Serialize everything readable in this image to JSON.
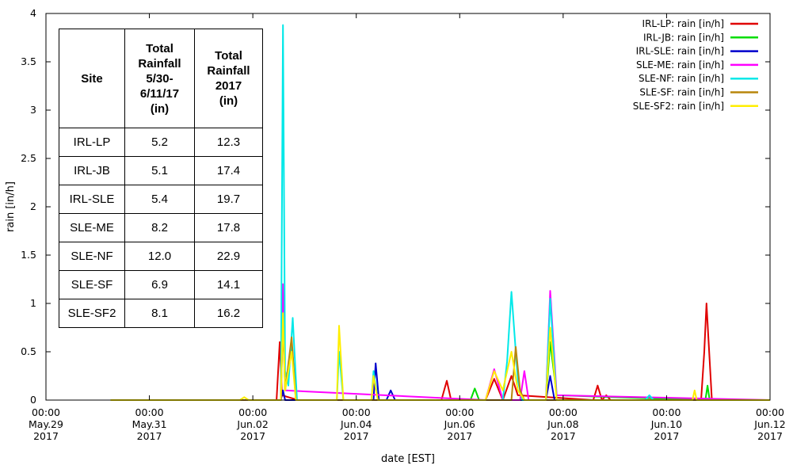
{
  "chart_data": {
    "type": "line",
    "title": "",
    "xlabel": "date [EST]",
    "ylabel": "rain [in/h]",
    "xlim": [
      "2017-05-29 00:00",
      "2017-06-12 00:00"
    ],
    "ylim": [
      0,
      4
    ],
    "y_ticks": [
      0,
      0.5,
      1,
      1.5,
      2,
      2.5,
      3,
      3.5,
      4
    ],
    "y_tick_labels": [
      "0",
      "0.5",
      "1",
      "1.5",
      "2",
      "2.5",
      "3",
      "3.5",
      "4"
    ],
    "x_ticks": [
      {
        "x": "2017-05-29",
        "line1": "00:00",
        "line2": "May.29",
        "line3": "2017"
      },
      {
        "x": "2017-05-31",
        "line1": "00:00",
        "line2": "May.31",
        "line3": "2017"
      },
      {
        "x": "2017-06-02",
        "line1": "00:00",
        "line2": "Jun.02",
        "line3": "2017"
      },
      {
        "x": "2017-06-04",
        "line1": "00:00",
        "line2": "Jun.04",
        "line3": "2017"
      },
      {
        "x": "2017-06-06",
        "line1": "00:00",
        "line2": "Jun.06",
        "line3": "2017"
      },
      {
        "x": "2017-06-08",
        "line1": "00:00",
        "line2": "Jun.08",
        "line3": "2017"
      },
      {
        "x": "2017-06-10",
        "line1": "00:00",
        "line2": "Jun.10",
        "line3": "2017"
      },
      {
        "x": "2017-06-12",
        "line1": "00:00",
        "line2": "Jun.12",
        "line3": "2017"
      }
    ],
    "grid": false,
    "legend_position": "top-right",
    "series": [
      {
        "name": "IRL-LP: rain [in/h]",
        "color": "#e00000",
        "points": [
          [
            "2017-05-30 06:00",
            0
          ],
          [
            "2017-06-02 11:00",
            0
          ],
          [
            "2017-06-02 12:30",
            0.6
          ],
          [
            "2017-06-02 13:30",
            0.05
          ],
          [
            "2017-06-02 21:00",
            0
          ],
          [
            "2017-06-05 15:30",
            0
          ],
          [
            "2017-06-05 18:00",
            0.2
          ],
          [
            "2017-06-05 20:00",
            0
          ],
          [
            "2017-06-06 12:00",
            0
          ],
          [
            "2017-06-06 16:00",
            0.22
          ],
          [
            "2017-06-06 20:00",
            0
          ],
          [
            "2017-06-07 00:00",
            0.25
          ],
          [
            "2017-06-07 03:00",
            0.05
          ],
          [
            "2017-06-08 14:00",
            0
          ],
          [
            "2017-06-08 16:00",
            0.15
          ],
          [
            "2017-06-08 18:00",
            0
          ],
          [
            "2017-06-08 20:00",
            0.05
          ],
          [
            "2017-06-08 22:00",
            0
          ],
          [
            "2017-06-10 16:00",
            0
          ],
          [
            "2017-06-10 17:30",
            0.5
          ],
          [
            "2017-06-10 18:30",
            1.0
          ],
          [
            "2017-06-10 19:30",
            0.6
          ],
          [
            "2017-06-10 21:00",
            0
          ],
          [
            "2017-06-12 00:00",
            0
          ]
        ]
      },
      {
        "name": "IRL-JB: rain [in/h]",
        "color": "#00dd00",
        "points": [
          [
            "2017-05-30 06:00",
            0
          ],
          [
            "2017-06-02 13:00",
            0
          ],
          [
            "2017-06-02 14:00",
            1.0
          ],
          [
            "2017-06-02 15:00",
            0.1
          ],
          [
            "2017-06-02 18:00",
            0.6
          ],
          [
            "2017-06-02 20:00",
            0
          ],
          [
            "2017-06-06 05:00",
            0
          ],
          [
            "2017-06-06 07:00",
            0.12
          ],
          [
            "2017-06-06 09:00",
            0
          ],
          [
            "2017-06-07 16:00",
            0
          ],
          [
            "2017-06-07 18:00",
            0.6
          ],
          [
            "2017-06-07 21:00",
            0.05
          ],
          [
            "2017-06-10 18:00",
            0
          ],
          [
            "2017-06-10 19:00",
            0.15
          ],
          [
            "2017-06-10 20:00",
            0
          ],
          [
            "2017-06-12 00:00",
            0
          ]
        ]
      },
      {
        "name": "IRL-SLE: rain [in/h]",
        "color": "#0000cc",
        "points": [
          [
            "2017-05-30 06:00",
            0
          ],
          [
            "2017-06-02 13:00",
            0
          ],
          [
            "2017-06-02 14:00",
            0.1
          ],
          [
            "2017-06-02 15:00",
            0
          ],
          [
            "2017-06-04 08:00",
            0
          ],
          [
            "2017-06-04 09:00",
            0.38
          ],
          [
            "2017-06-04 10:30",
            0
          ],
          [
            "2017-06-04 14:00",
            0
          ],
          [
            "2017-06-04 16:00",
            0.1
          ],
          [
            "2017-06-04 18:00",
            0
          ],
          [
            "2017-06-07 16:00",
            0
          ],
          [
            "2017-06-07 18:00",
            0.25
          ],
          [
            "2017-06-07 20:00",
            0
          ],
          [
            "2017-06-12 00:00",
            0
          ]
        ]
      },
      {
        "name": "SLE-ME: rain [in/h]",
        "color": "#ff00ff",
        "points": [
          [
            "2017-05-30 06:00",
            0
          ],
          [
            "2017-06-02 13:00",
            0
          ],
          [
            "2017-06-02 14:00",
            1.2
          ],
          [
            "2017-06-02 15:00",
            0.1
          ],
          [
            "2017-06-06 12:00",
            0
          ],
          [
            "2017-06-06 16:00",
            0.32
          ],
          [
            "2017-06-06 20:00",
            0
          ],
          [
            "2017-06-07 04:00",
            0
          ],
          [
            "2017-06-07 06:00",
            0.3
          ],
          [
            "2017-06-07 08:00",
            0
          ],
          [
            "2017-06-07 16:00",
            0
          ],
          [
            "2017-06-07 18:00",
            1.13
          ],
          [
            "2017-06-07 21:00",
            0.05
          ],
          [
            "2017-06-12 00:00",
            0
          ]
        ]
      },
      {
        "name": "SLE-NF: rain [in/h]",
        "color": "#00e8e8",
        "points": [
          [
            "2017-05-30 06:00",
            0
          ],
          [
            "2017-06-02 13:00",
            0
          ],
          [
            "2017-06-02 14:00",
            3.88
          ],
          [
            "2017-06-02 15:00",
            0.3
          ],
          [
            "2017-06-02 16:30",
            0.15
          ],
          [
            "2017-06-02 18:30",
            0.85
          ],
          [
            "2017-06-02 20:30",
            0
          ],
          [
            "2017-06-03 15:00",
            0
          ],
          [
            "2017-06-03 16:00",
            0.5
          ],
          [
            "2017-06-03 18:00",
            0
          ],
          [
            "2017-06-04 07:00",
            0
          ],
          [
            "2017-06-04 08:00",
            0.3
          ],
          [
            "2017-06-04 10:00",
            0
          ],
          [
            "2017-06-06 20:00",
            0
          ],
          [
            "2017-06-06 22:00",
            0.4
          ],
          [
            "2017-06-07 00:00",
            1.12
          ],
          [
            "2017-06-07 03:00",
            0.2
          ],
          [
            "2017-06-07 05:00",
            0
          ],
          [
            "2017-06-07 16:00",
            0
          ],
          [
            "2017-06-07 18:00",
            1.05
          ],
          [
            "2017-06-07 21:00",
            0
          ],
          [
            "2017-06-09 14:00",
            0
          ],
          [
            "2017-06-09 16:00",
            0.05
          ],
          [
            "2017-06-09 18:00",
            0
          ],
          [
            "2017-06-12 00:00",
            0
          ]
        ]
      },
      {
        "name": "SLE-SF: rain [in/h]",
        "color": "#b8860b",
        "points": [
          [
            "2017-05-30 06:00",
            0
          ],
          [
            "2017-06-02 13:00",
            0
          ],
          [
            "2017-06-02 14:00",
            0.8
          ],
          [
            "2017-06-02 15:00",
            0.1
          ],
          [
            "2017-06-02 18:00",
            0.65
          ],
          [
            "2017-06-02 20:00",
            0
          ],
          [
            "2017-06-07 00:00",
            0
          ],
          [
            "2017-06-07 02:00",
            0.55
          ],
          [
            "2017-06-07 04:00",
            0.1
          ],
          [
            "2017-06-07 06:00",
            0
          ],
          [
            "2017-06-12 00:00",
            0
          ]
        ]
      },
      {
        "name": "SLE-SF2: rain [in/h]",
        "color": "#ffee00",
        "points": [
          [
            "2017-05-30 06:00",
            0
          ],
          [
            "2017-06-01 18:00",
            0
          ],
          [
            "2017-06-01 20:00",
            0.03
          ],
          [
            "2017-06-01 22:00",
            0
          ],
          [
            "2017-06-02 13:00",
            0
          ],
          [
            "2017-06-02 14:00",
            0.9
          ],
          [
            "2017-06-02 15:00",
            0.1
          ],
          [
            "2017-06-02 18:00",
            0.5
          ],
          [
            "2017-06-02 20:00",
            0
          ],
          [
            "2017-06-03 15:00",
            0
          ],
          [
            "2017-06-03 16:00",
            0.77
          ],
          [
            "2017-06-03 18:00",
            0
          ],
          [
            "2017-06-04 07:00",
            0
          ],
          [
            "2017-06-04 08:00",
            0.25
          ],
          [
            "2017-06-04 10:00",
            0
          ],
          [
            "2017-06-06 12:00",
            0
          ],
          [
            "2017-06-06 16:00",
            0.3
          ],
          [
            "2017-06-06 20:00",
            0.1
          ],
          [
            "2017-06-07 00:00",
            0.5
          ],
          [
            "2017-06-07 03:00",
            0.1
          ],
          [
            "2017-06-07 06:00",
            0
          ],
          [
            "2017-06-07 16:00",
            0
          ],
          [
            "2017-06-07 18:00",
            0.75
          ],
          [
            "2017-06-07 21:00",
            0
          ],
          [
            "2017-06-10 12:00",
            0
          ],
          [
            "2017-06-10 13:00",
            0.1
          ],
          [
            "2017-06-10 14:00",
            0
          ],
          [
            "2017-06-12 00:00",
            0
          ]
        ]
      }
    ]
  },
  "table": {
    "headers": [
      "Site",
      "Total Rainfall 5/30-6/11/17 (in)",
      "Total Rainfall 2017 (in)"
    ],
    "header_lines": [
      [
        "Site"
      ],
      [
        "Total",
        "Rainfall",
        "5/30-",
        "6/11/17",
        "(in)"
      ],
      [
        "Total",
        "Rainfall",
        "2017",
        "(in)"
      ]
    ],
    "rows": [
      [
        "IRL-LP",
        "5.2",
        "12.3"
      ],
      [
        "IRL-JB",
        "5.1",
        "17.4"
      ],
      [
        "IRL-SLE",
        "5.4",
        "19.7"
      ],
      [
        "SLE-ME",
        "8.2",
        "17.8"
      ],
      [
        "SLE-NF",
        "12.0",
        "22.9"
      ],
      [
        "SLE-SF",
        "6.9",
        "14.1"
      ],
      [
        "SLE-SF2",
        "8.1",
        "16.2"
      ]
    ]
  }
}
